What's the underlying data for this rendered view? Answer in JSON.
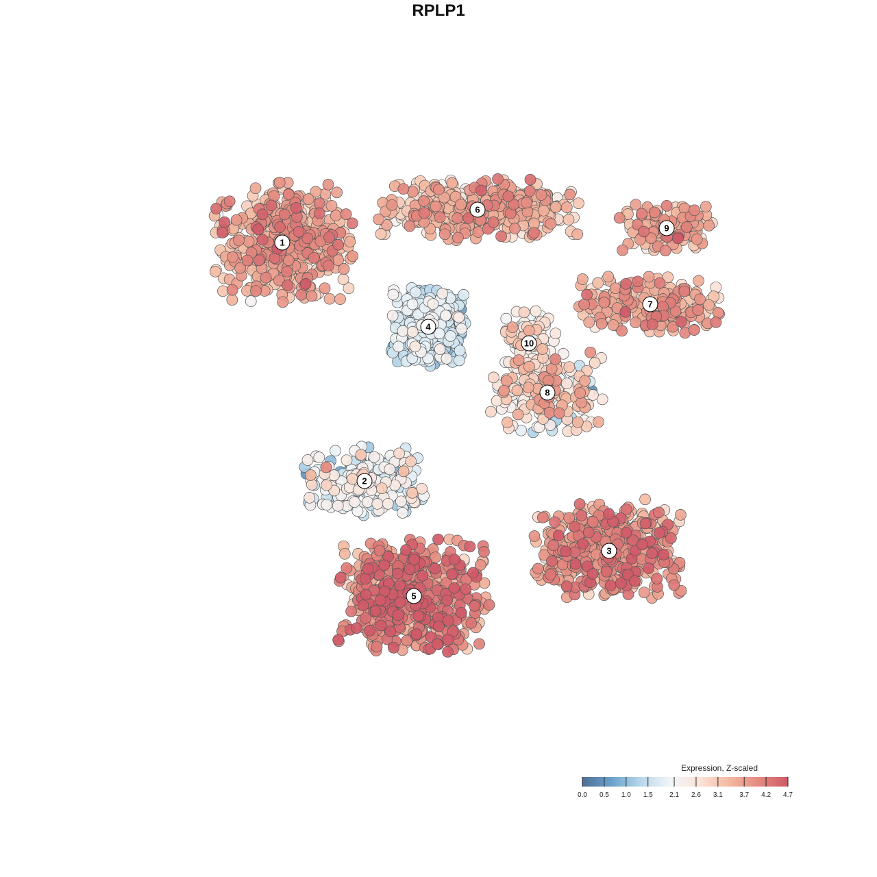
{
  "title": "RPLP1",
  "chart_data": {
    "type": "scatter",
    "title": "RPLP1",
    "xlabel": "",
    "ylabel": "",
    "grid": false,
    "legend_placement": "bottom-right",
    "color_scale": {
      "title": "Expression, Z-scaled",
      "ticks": [
        0.0,
        0.5,
        1.0,
        1.5,
        2.1,
        2.6,
        3.1,
        3.7,
        4.2,
        4.7
      ],
      "tick_labels": [
        "0.0",
        "0.5",
        "1.0",
        "1.5",
        "2.1",
        "2.6",
        "3.1",
        "3.7",
        "4.2",
        "4.7"
      ],
      "min": 0.0,
      "max": 4.7,
      "colors": [
        "#4f6f96",
        "#6aa2cc",
        "#b9d8ea",
        "#f2f6f8",
        "#fbe3d8",
        "#f3b9a0",
        "#e48a80",
        "#cf5a68"
      ]
    },
    "clusters": [
      {
        "label": "1",
        "x": -7.6,
        "y": 8.2,
        "mean_expr": 3.4
      },
      {
        "label": "2",
        "x": -3.6,
        "y": -3.4,
        "mean_expr": 1.9
      },
      {
        "label": "3",
        "x": 8.3,
        "y": -6.8,
        "mean_expr": 3.7
      },
      {
        "label": "4",
        "x": -0.5,
        "y": 4.1,
        "mean_expr": 1.5
      },
      {
        "label": "5",
        "x": -1.2,
        "y": -9.0,
        "mean_expr": 4.0
      },
      {
        "label": "6",
        "x": 1.9,
        "y": 9.8,
        "mean_expr": 3.2
      },
      {
        "label": "7",
        "x": 10.3,
        "y": 5.2,
        "mean_expr": 3.4
      },
      {
        "label": "8",
        "x": 5.3,
        "y": 0.9,
        "mean_expr": 2.6
      },
      {
        "label": "9",
        "x": 11.1,
        "y": 8.9,
        "mean_expr": 3.5
      },
      {
        "label": "10",
        "x": 4.4,
        "y": 3.3,
        "mean_expr": 2.5
      }
    ]
  }
}
